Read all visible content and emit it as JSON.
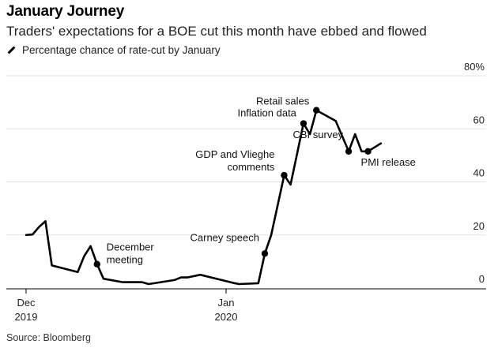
{
  "header": {
    "title": "January Journey",
    "subtitle": "Traders' expectations for a BOE cut this month have ebbed and flowed"
  },
  "legend": {
    "label": "Percentage chance of rate-cut by January"
  },
  "footer": {
    "source": "Source: Bloomberg"
  },
  "colors": {
    "line": "#000000",
    "grid": "#e3e3e3",
    "axis": "#000000"
  },
  "chart_data": {
    "type": "line",
    "title": "January Journey",
    "subtitle": "Traders' expectations for a BOE cut this month have ebbed and flowed",
    "xlabel": "",
    "ylabel": "",
    "ylim": [
      0,
      80
    ],
    "y_ticks": [
      0,
      20,
      40,
      60,
      80
    ],
    "y_tick_labels": [
      "0",
      "20",
      "40",
      "60",
      "80%"
    ],
    "x_ticks": [
      {
        "date": "2019-12-01",
        "label_line1": "Dec",
        "label_line2": "2019"
      },
      {
        "date": "2020-01-01",
        "label_line1": "Jan",
        "label_line2": "2020"
      }
    ],
    "grid": true,
    "legend_position": "top-left",
    "series": [
      {
        "name": "Percentage chance of rate-cut by January",
        "points": [
          {
            "date": "2019-12-01",
            "value": 20
          },
          {
            "date": "2019-12-02",
            "value": 20.2
          },
          {
            "date": "2019-12-03",
            "value": 23
          },
          {
            "date": "2019-12-04",
            "value": 25.2
          },
          {
            "date": "2019-12-05",
            "value": 8.5
          },
          {
            "date": "2019-12-09",
            "value": 6
          },
          {
            "date": "2019-12-10",
            "value": 12
          },
          {
            "date": "2019-12-11",
            "value": 15.8
          },
          {
            "date": "2019-12-12",
            "value": 9
          },
          {
            "date": "2019-12-13",
            "value": 3.5
          },
          {
            "date": "2019-12-16",
            "value": 2.2
          },
          {
            "date": "2019-12-19",
            "value": 2.2
          },
          {
            "date": "2019-12-20",
            "value": 1.5
          },
          {
            "date": "2019-12-24",
            "value": 3
          },
          {
            "date": "2019-12-25",
            "value": 4
          },
          {
            "date": "2019-12-26",
            "value": 4
          },
          {
            "date": "2019-12-28",
            "value": 5
          },
          {
            "date": "2020-01-02",
            "value": 2
          },
          {
            "date": "2020-01-03",
            "value": 1.5
          },
          {
            "date": "2020-01-06",
            "value": 1.8
          },
          {
            "date": "2020-01-07",
            "value": 13
          },
          {
            "date": "2020-01-08",
            "value": 20
          },
          {
            "date": "2020-01-10",
            "value": 42.5
          },
          {
            "date": "2020-01-11",
            "value": 39
          },
          {
            "date": "2020-01-13",
            "value": 62
          },
          {
            "date": "2020-01-14",
            "value": 58
          },
          {
            "date": "2020-01-15",
            "value": 67
          },
          {
            "date": "2020-01-18",
            "value": 63
          },
          {
            "date": "2020-01-20",
            "value": 51.5
          },
          {
            "date": "2020-01-21",
            "value": 58
          },
          {
            "date": "2020-01-22",
            "value": 51.5
          },
          {
            "date": "2020-01-23",
            "value": 51.5
          },
          {
            "date": "2020-01-25",
            "value": 54.5
          }
        ]
      }
    ],
    "annotations": [
      {
        "date": "2019-12-12",
        "value": 9,
        "lines": [
          "December",
          "meeting"
        ],
        "anchor": "start"
      },
      {
        "date": "2020-01-07",
        "value": 13,
        "lines": [
          "Carney speech"
        ],
        "anchor": "end"
      },
      {
        "date": "2020-01-10",
        "value": 42.5,
        "lines": [
          "GDP and Vlieghe",
          "comments"
        ],
        "anchor": "end"
      },
      {
        "date": "2020-01-13",
        "value": 62,
        "lines": [
          "Inflation data"
        ],
        "anchor": "end"
      },
      {
        "date": "2020-01-15",
        "value": 67,
        "lines": [
          "Retail sales"
        ],
        "anchor": "end"
      },
      {
        "date": "2020-01-20",
        "value": 51.5,
        "lines": [
          "CBI survey"
        ],
        "anchor": "end"
      },
      {
        "date": "2020-01-23",
        "value": 51.5,
        "lines": [
          "PMI release"
        ],
        "anchor": "start"
      }
    ]
  }
}
